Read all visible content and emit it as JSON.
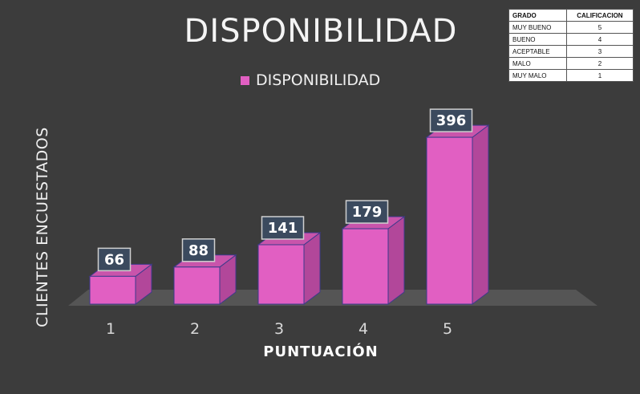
{
  "chart_data": {
    "type": "bar",
    "title": "DISPONIBILIDAD",
    "xlabel": "PUNTUACIÓN",
    "ylabel": "CLIENTES ENCUESTADOS",
    "categories": [
      "1",
      "2",
      "3",
      "4",
      "5"
    ],
    "series": [
      {
        "name": "DISPONIBILIDAD",
        "values": [
          66,
          88,
          141,
          179,
          396
        ]
      }
    ],
    "ylim": [
      0,
      420
    ],
    "legend_position": "top",
    "grid": false,
    "bar_style": "3d",
    "colors": {
      "bar": "#e15fc2",
      "bar_side": "#b2479a",
      "bar_top": "#c954ab",
      "background": "#3c3c3c",
      "floor": "#555555"
    }
  },
  "reference_table": {
    "headers": [
      "GRADO",
      "CALIFICACION"
    ],
    "rows": [
      [
        "MUY BUENO",
        "5"
      ],
      [
        "BUENO",
        "4"
      ],
      [
        "ACEPTABLE",
        "3"
      ],
      [
        "MALO",
        "2"
      ],
      [
        "MUY MALO",
        "1"
      ]
    ]
  }
}
